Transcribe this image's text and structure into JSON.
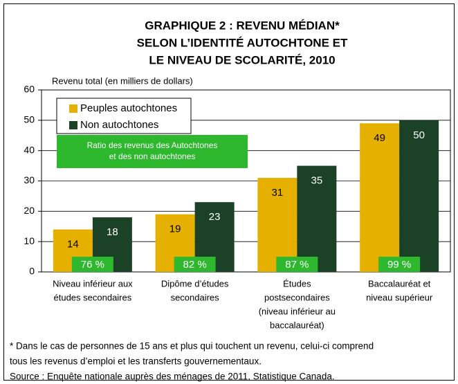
{
  "chart_data": {
    "type": "bar",
    "title": [
      "GRAPHIQUE 2 : REVENU MÉDIAN*",
      "SELON L’IDENTITÉ AUTOCHTONE ET",
      "LE NIVEAU DE SCOLARITÉ, 2010"
    ],
    "y_label": "Revenu total (en milliers de dollars)",
    "categories": [
      [
        "Niveau inférieur aux",
        "études secondaires"
      ],
      [
        "Dipôme d’études",
        "secondaires"
      ],
      [
        "Études",
        "postsecondaires",
        "(niveau inférieur au",
        "baccalauréat)"
      ],
      [
        "Baccalauréat et",
        "niveau supérieur"
      ]
    ],
    "series": [
      {
        "name": "Peuples autochtones",
        "color": "#e5b000",
        "values": [
          14,
          19,
          31,
          49
        ]
      },
      {
        "name": "Non autochtones",
        "color": "#1b4226",
        "values": [
          18,
          23,
          35,
          50
        ]
      }
    ],
    "ratios": {
      "title": [
        "Ratio des revenus des Autochtones",
        "et des non autochtones"
      ],
      "color": "#2eb82e",
      "values": [
        76,
        82,
        87,
        99
      ],
      "value_labels": [
        "76 %",
        "82 %",
        "87 %",
        "99 %"
      ]
    },
    "ylim": [
      0,
      60
    ],
    "yticks": [
      0,
      10,
      20,
      30,
      40,
      50,
      60
    ],
    "grid": true,
    "footnote": [
      "* Dans le cas de personnes de 15 ans et plus qui touchent un revenu, celui-ci comprend",
      "tous les revenus d’emploi et les transferts gouvernementaux.",
      "Source : Enquête nationale auprès des ménages de 2011, Statistique Canada."
    ]
  }
}
